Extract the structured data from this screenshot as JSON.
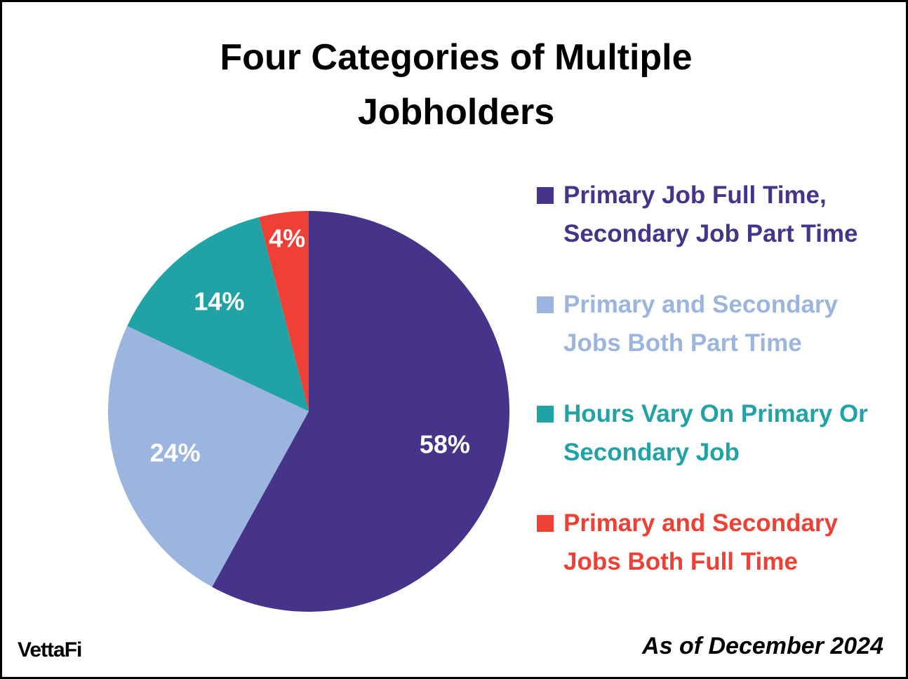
{
  "chart_data": {
    "type": "pie",
    "title": "Four Categories of Multiple Jobholders",
    "categories": [
      "Primary Job Full Time, Secondary Job Part Time",
      "Primary and Secondary Jobs Both Part Time",
      "Hours Vary On Primary Or Secondary Job",
      "Primary and Secondary Jobs Both Full Time"
    ],
    "values": [
      58,
      24,
      14,
      4
    ],
    "value_labels": [
      "58%",
      "24%",
      "14%",
      "4%"
    ],
    "colors": [
      "#46338a",
      "#9bb5de",
      "#21a3a6",
      "#ee4035"
    ],
    "legend": "right",
    "note": "As of December 2024",
    "source": "VettaFi"
  }
}
